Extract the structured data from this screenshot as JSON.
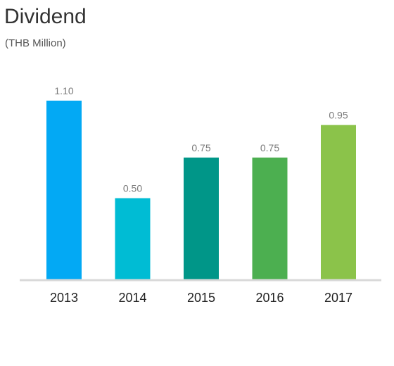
{
  "chart_data": {
    "type": "bar",
    "title": "Dividend",
    "subtitle": "(THB Million)",
    "categories": [
      "2013",
      "2014",
      "2015",
      "2016",
      "2017"
    ],
    "values": [
      1.1,
      0.5,
      0.75,
      0.75,
      0.95
    ],
    "value_labels": [
      "1.10",
      "0.50",
      "0.75",
      "0.75",
      "0.95"
    ],
    "colors": [
      "#03a9f4",
      "#00bcd4",
      "#009688",
      "#4caf50",
      "#8bc34a"
    ],
    "axis_color": "#d9d9d9",
    "ylim": [
      0,
      1.1
    ],
    "grid": false,
    "legend": "none"
  }
}
